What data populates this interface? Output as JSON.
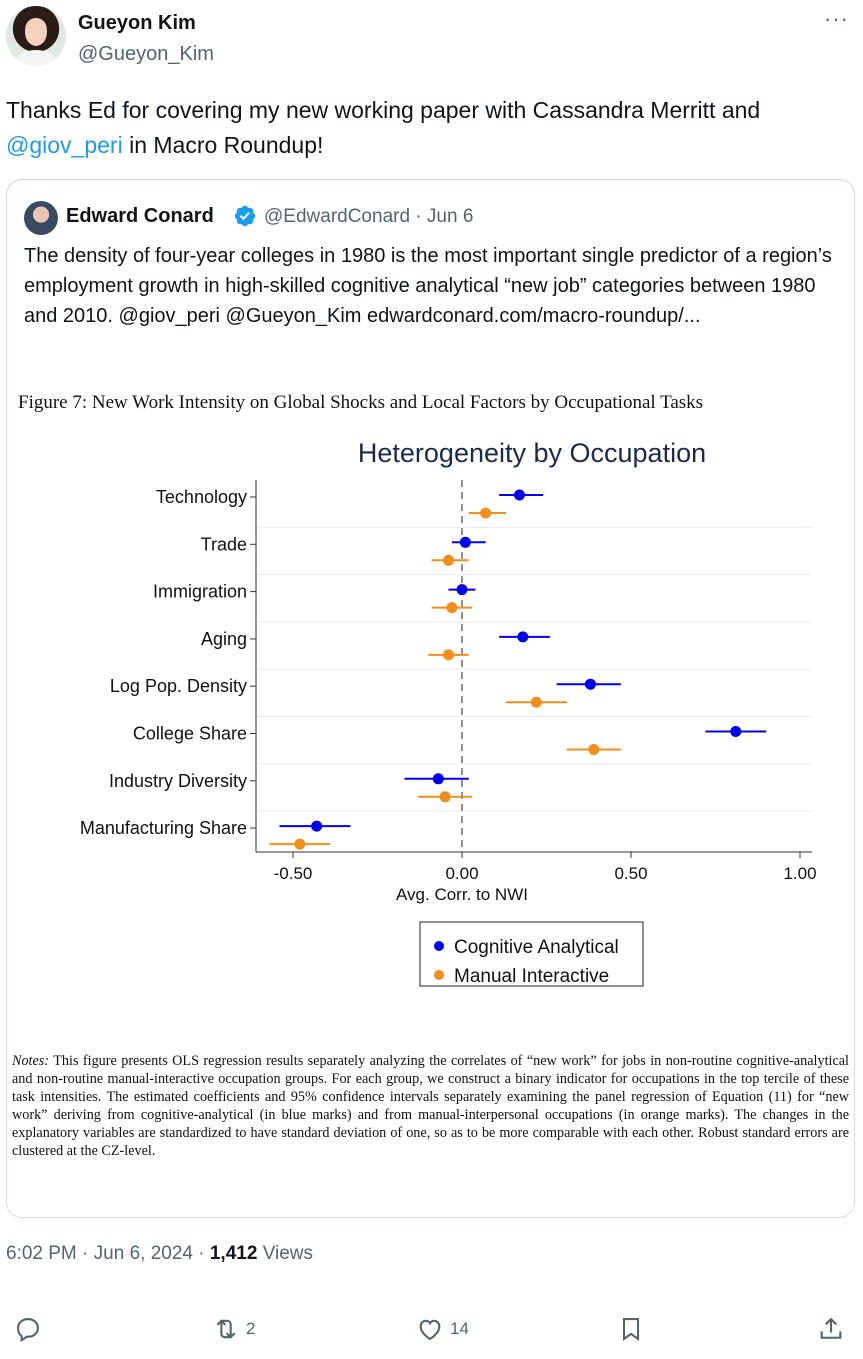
{
  "author": {
    "name": "Gueyon Kim",
    "handle": "@Gueyon_Kim",
    "more_icon": "more-icon"
  },
  "tweet": {
    "text_before": "Thanks Ed for covering my new working paper with Cassandra Merritt and ",
    "mention": "@giov_peri",
    "text_after": " in Macro Roundup!"
  },
  "quote": {
    "name": "Edward Conard",
    "handle": "@EdwardConard",
    "separator": "·",
    "date": "Jun 6",
    "text": "The density of four-year colleges in 1980 is the most important single predictor of a region’s employment growth in high-skilled cognitive analytical “new job” categories between 1980 and 2010. @giov_peri @Gueyon_Kim edwardconard.com/macro-roundup/...",
    "figure_caption": "Figure 7: New Work Intensity on Global Shocks and Local Factors by Occupational Tasks",
    "notes_label": "Notes:",
    "notes_text": " This figure presents OLS regression results separately analyzing the correlates of “new work” for jobs in non-routine cognitive-analytical and non-routine manual-interactive occupation groups. For each group, we construct a binary indicator for occupations in the top tercile of these task intensities. The estimated coefficients and 95% confidence intervals separately examining the panel regression of Equation (11) for “new work” deriving from cognitive-analytical (in blue marks) and from manual-interpersonal occupations (in orange marks). The changes in the explanatory variables are standardized to have standard deviation of one, so as to be more comparable with each other. Robust standard errors are clustered at the CZ-level."
  },
  "chart_data": {
    "type": "scatter",
    "title": "Heterogeneity by Occupation",
    "xlabel": "Avg. Corr. to NWI",
    "ylabel": "",
    "xlim": [
      -0.65,
      1.0
    ],
    "xticks": [
      -0.5,
      0.0,
      0.5,
      1.0
    ],
    "xtick_labels": [
      "-0.50",
      "0.00",
      "0.50",
      "1.00"
    ],
    "reference_line_x": 0.0,
    "categories": [
      "Technology",
      "Trade",
      "Immigration",
      "Aging",
      "Log Pop. Density",
      "College Share",
      "Industry Diversity",
      "Manufacturing Share"
    ],
    "series": [
      {
        "name": "Cognitive Analytical",
        "color": "#0000ee",
        "values": [
          0.17,
          0.01,
          0.0,
          0.18,
          0.38,
          0.81,
          -0.07,
          -0.43
        ],
        "ci_low": [
          0.11,
          -0.03,
          -0.04,
          0.11,
          0.28,
          0.72,
          -0.17,
          -0.54
        ],
        "ci_high": [
          0.24,
          0.07,
          0.04,
          0.26,
          0.47,
          0.9,
          0.02,
          -0.33
        ]
      },
      {
        "name": "Manual Interactive",
        "color": "#f28e1c",
        "values": [
          0.07,
          -0.04,
          -0.03,
          -0.04,
          0.22,
          0.39,
          -0.05,
          -0.48
        ],
        "ci_low": [
          0.02,
          -0.09,
          -0.09,
          -0.1,
          0.13,
          0.31,
          -0.13,
          -0.57
        ],
        "ci_high": [
          0.13,
          0.02,
          0.03,
          0.02,
          0.31,
          0.47,
          0.03,
          -0.39
        ]
      }
    ],
    "legend_position": "bottom-center",
    "grid": true
  },
  "footer": {
    "time": "6:02 PM",
    "date": "Jun 6, 2024",
    "separator": "·",
    "views_count": "1,412",
    "views_label": "Views"
  },
  "actions": {
    "reply_icon": "reply-icon",
    "retweet_icon": "retweet-icon",
    "retweet_count": "2",
    "like_icon": "like-icon",
    "like_count": "14",
    "bookmark_icon": "bookmark-icon",
    "share_icon": "share-icon"
  }
}
